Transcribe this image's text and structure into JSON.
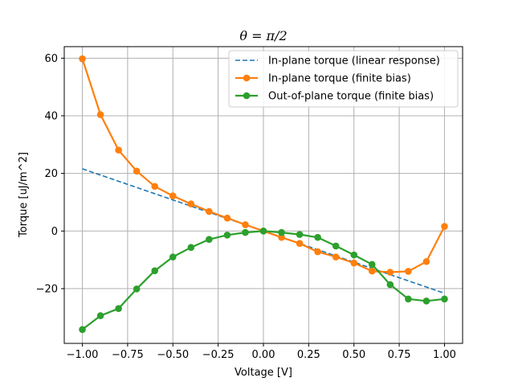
{
  "chart_data": {
    "type": "line",
    "title": "θ = π/2",
    "xlabel": "Voltage [V]",
    "ylabel": "Torque [uJ/m^2]",
    "xlim": [
      -1.1,
      1.1
    ],
    "ylim": [
      -39,
      64
    ],
    "xticks": [
      -1.0,
      -0.75,
      -0.5,
      -0.25,
      0.0,
      0.25,
      0.5,
      0.75,
      1.0
    ],
    "xtick_labels": [
      "−1.00",
      "−0.75",
      "−0.50",
      "−0.25",
      "0.00",
      "0.25",
      "0.50",
      "0.75",
      "1.00"
    ],
    "yticks": [
      -20,
      0,
      20,
      40,
      60
    ],
    "ytick_labels": [
      "−20",
      "0",
      "20",
      "40",
      "60"
    ],
    "grid": true,
    "legend_position": "top-right",
    "series": [
      {
        "name": "In-plane torque (linear response)",
        "color": "#1f77b4",
        "style": "dashed",
        "x": [
          -1.0,
          1.0
        ],
        "y": [
          21.6,
          -21.6
        ]
      },
      {
        "name": "In-plane torque (finite bias)",
        "color": "#ff7f0e",
        "style": "solid-marker",
        "x": [
          -1.0,
          -0.9,
          -0.8,
          -0.7,
          -0.6,
          -0.5,
          -0.4,
          -0.3,
          -0.2,
          -0.1,
          0.0,
          0.1,
          0.2,
          0.3,
          0.4,
          0.5,
          0.6,
          0.7,
          0.8,
          0.9,
          1.0
        ],
        "y": [
          59.8,
          40.4,
          28.1,
          20.8,
          15.5,
          12.2,
          9.4,
          6.8,
          4.5,
          2.2,
          0.0,
          -2.2,
          -4.3,
          -7.2,
          -9.0,
          -11.1,
          -13.9,
          -14.3,
          -14.0,
          -10.6,
          1.6
        ]
      },
      {
        "name": "Out-of-plane torque (finite bias)",
        "color": "#2ca02c",
        "style": "solid-marker",
        "x": [
          -1.0,
          -0.9,
          -0.8,
          -0.7,
          -0.6,
          -0.5,
          -0.4,
          -0.3,
          -0.2,
          -0.1,
          0.0,
          0.1,
          0.2,
          0.3,
          0.4,
          0.5,
          0.6,
          0.7,
          0.8,
          0.9,
          1.0
        ],
        "y": [
          -34.2,
          -29.4,
          -26.9,
          -20.1,
          -13.8,
          -9.0,
          -5.7,
          -2.9,
          -1.4,
          -0.5,
          0.0,
          -0.5,
          -1.2,
          -2.2,
          -5.2,
          -8.3,
          -11.6,
          -18.6,
          -23.6,
          -24.3,
          -23.6
        ]
      }
    ]
  }
}
